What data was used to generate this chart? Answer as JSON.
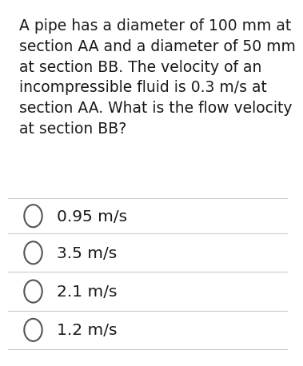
{
  "question_text": "A pipe has a diameter of 100 mm at\nsection AA and a diameter of 50 mm\nat section BB. The velocity of an\nincompressible fluid is 0.3 m/s at\nsection AA. What is the flow velocity\nat section BB?",
  "options": [
    "0.95 m/s",
    "3.5 m/s",
    "2.1 m/s",
    "1.2 m/s"
  ],
  "bg_color": "#ffffff",
  "text_color": "#1a1a1a",
  "option_text_color": "#1a1a1a",
  "circle_edge_color": "#555555",
  "line_color": "#cccccc",
  "question_fontsize": 13.5,
  "option_fontsize": 14.5,
  "fig_width": 3.5,
  "fig_height": 4.39
}
